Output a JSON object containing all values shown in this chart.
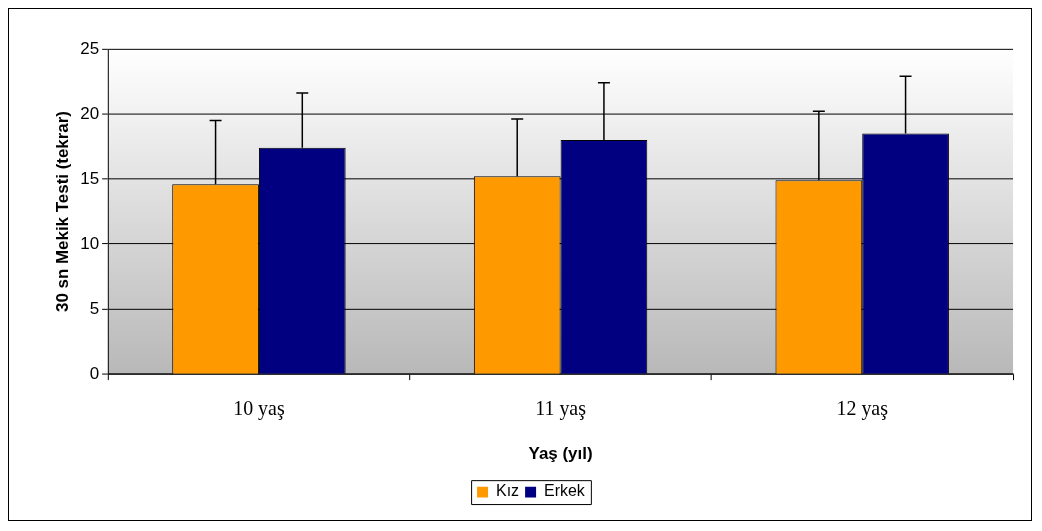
{
  "chart_data": {
    "type": "bar",
    "xlabel": "Yaş (yıl)",
    "ylabel": "30 sn Mekik Testi (tekrar)",
    "categories": [
      "10 yaş",
      "11 yaş",
      "12 yaş"
    ],
    "series": [
      {
        "name": "Kız",
        "color": "#ff9900",
        "values": [
          14.6,
          15.2,
          14.9
        ],
        "errors": [
          [
            14.6,
            19.5
          ],
          [
            15.2,
            19.6
          ],
          [
            14.9,
            20.2
          ]
        ]
      },
      {
        "name": "Erkek",
        "color": "#000080",
        "values": [
          17.4,
          18.0,
          18.5
        ],
        "errors": [
          [
            17.4,
            21.6
          ],
          [
            18.0,
            22.4
          ],
          [
            18.5,
            22.9
          ]
        ]
      }
    ],
    "ylim": [
      0,
      25
    ],
    "yticks": [
      0,
      5,
      10,
      15,
      20,
      25
    ],
    "grid": "y",
    "legend": "bottom"
  }
}
